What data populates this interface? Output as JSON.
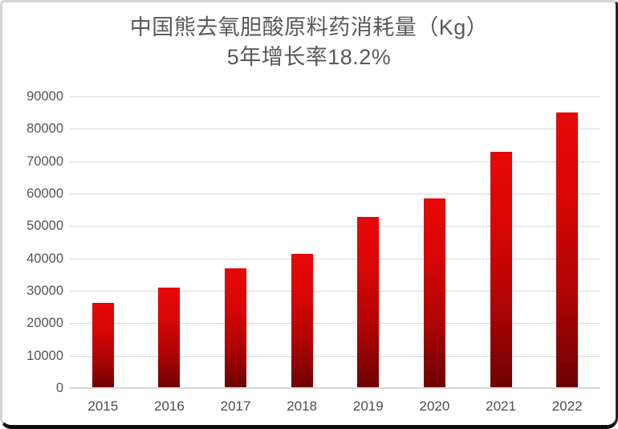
{
  "title": {
    "line1": "中国熊去氧胆酸原料药消耗量（Kg）",
    "line2": "5年增长率18.2%"
  },
  "chart_data": {
    "type": "bar",
    "title": "中国熊去氧胆酸原料药消耗量（Kg）",
    "subtitle": "5年增长率18.2%",
    "categories": [
      "2015",
      "2016",
      "2017",
      "2018",
      "2019",
      "2020",
      "2021",
      "2022"
    ],
    "values": [
      26000,
      30700,
      36800,
      41200,
      52600,
      58300,
      72600,
      84800
    ],
    "xlabel": "",
    "ylabel": "",
    "ylim": [
      0,
      90000
    ],
    "yticks": [
      0,
      10000,
      20000,
      30000,
      40000,
      50000,
      60000,
      70000,
      80000,
      90000
    ],
    "grid": true,
    "legend": false,
    "bar_color_top": "#e60808",
    "bar_color_bottom": "#6e0202",
    "gridline_color": "#d9d9d9",
    "text_color": "#595959"
  }
}
